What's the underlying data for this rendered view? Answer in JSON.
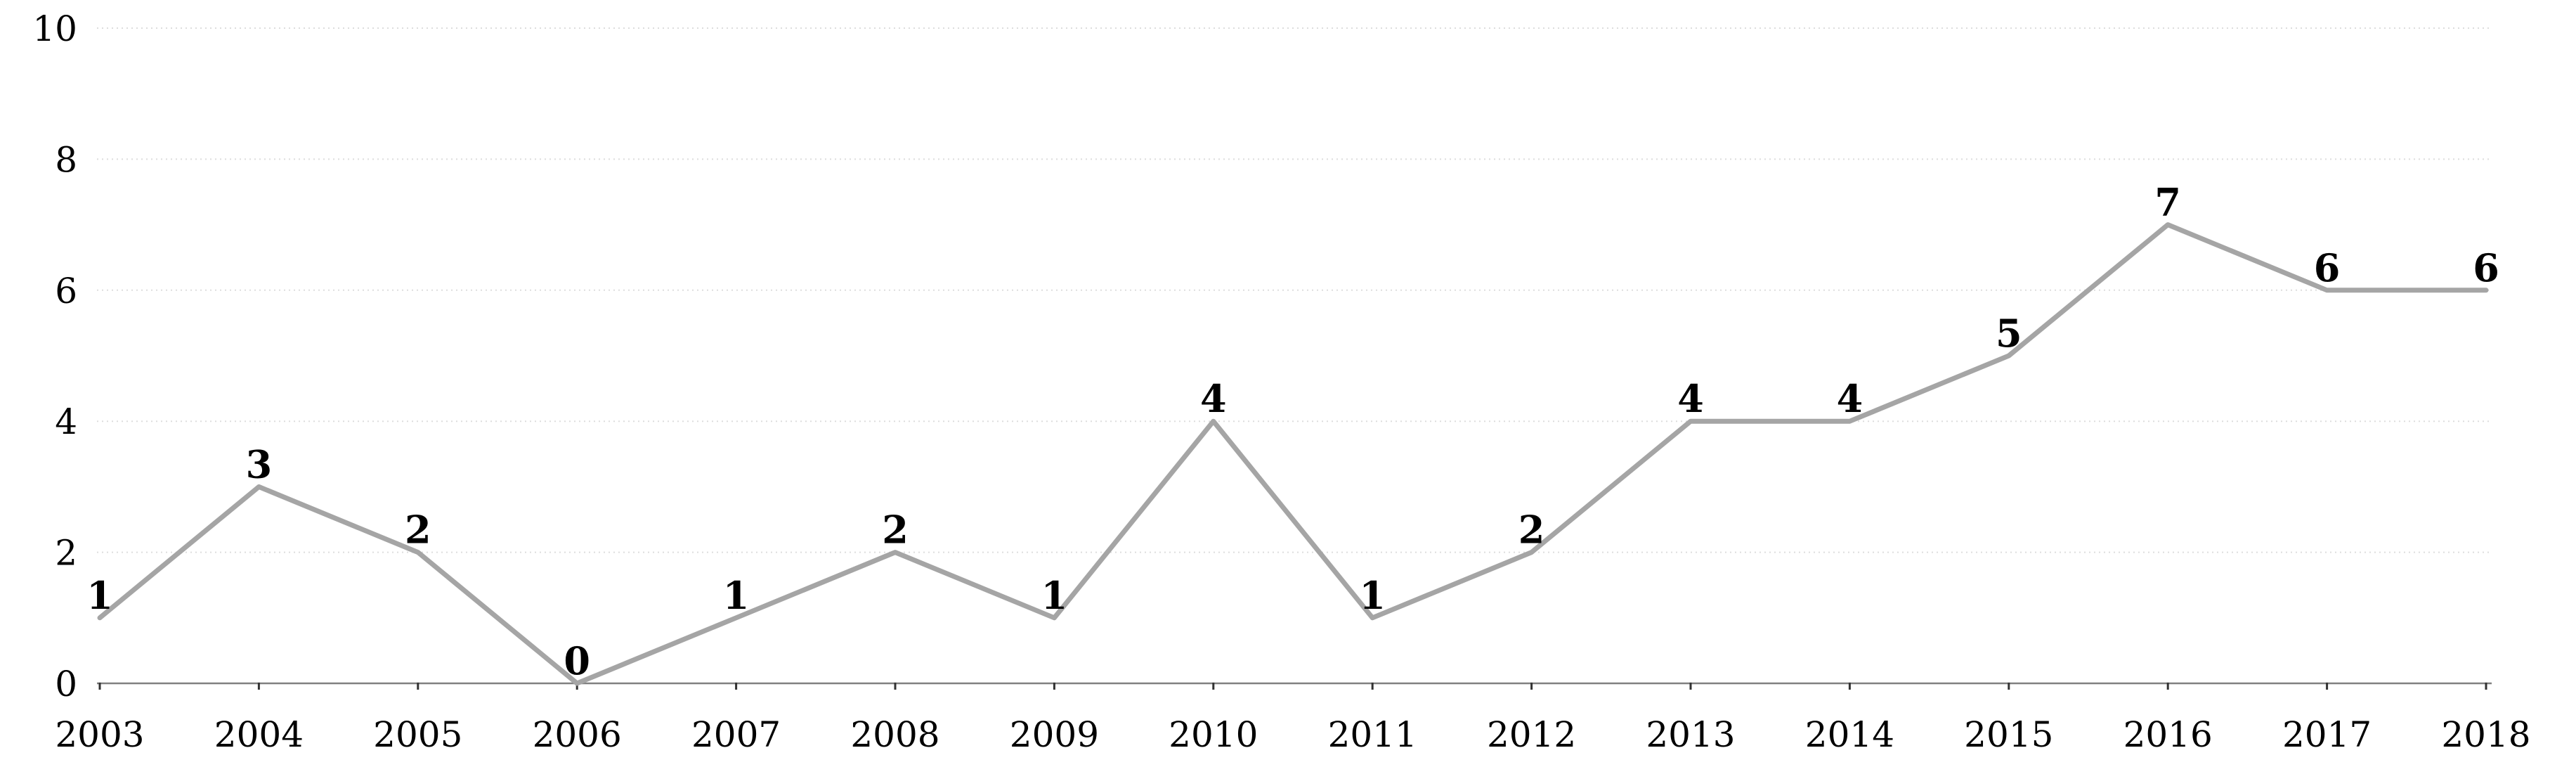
{
  "chart_data": {
    "type": "line",
    "categories": [
      "2003",
      "2004",
      "2005",
      "2006",
      "2007",
      "2008",
      "2009",
      "2010",
      "2011",
      "2012",
      "2013",
      "2014",
      "2015",
      "2016",
      "2017",
      "2018"
    ],
    "values": [
      1,
      3,
      2,
      0,
      1,
      2,
      1,
      4,
      1,
      2,
      4,
      4,
      5,
      7,
      6,
      6
    ],
    "yticks": [
      0,
      2,
      4,
      6,
      8,
      10
    ],
    "ylim": [
      0,
      10
    ],
    "grid": "horizontal-dotted",
    "legend": "none",
    "data_labels": true
  },
  "colors": {
    "background": "#ffffff",
    "line": "#a5a5a5",
    "gridline": "#dddddd",
    "axis": "#808080",
    "tick_mark": "#333333",
    "axis_text": "#000000",
    "data_label_text": "#000000"
  }
}
